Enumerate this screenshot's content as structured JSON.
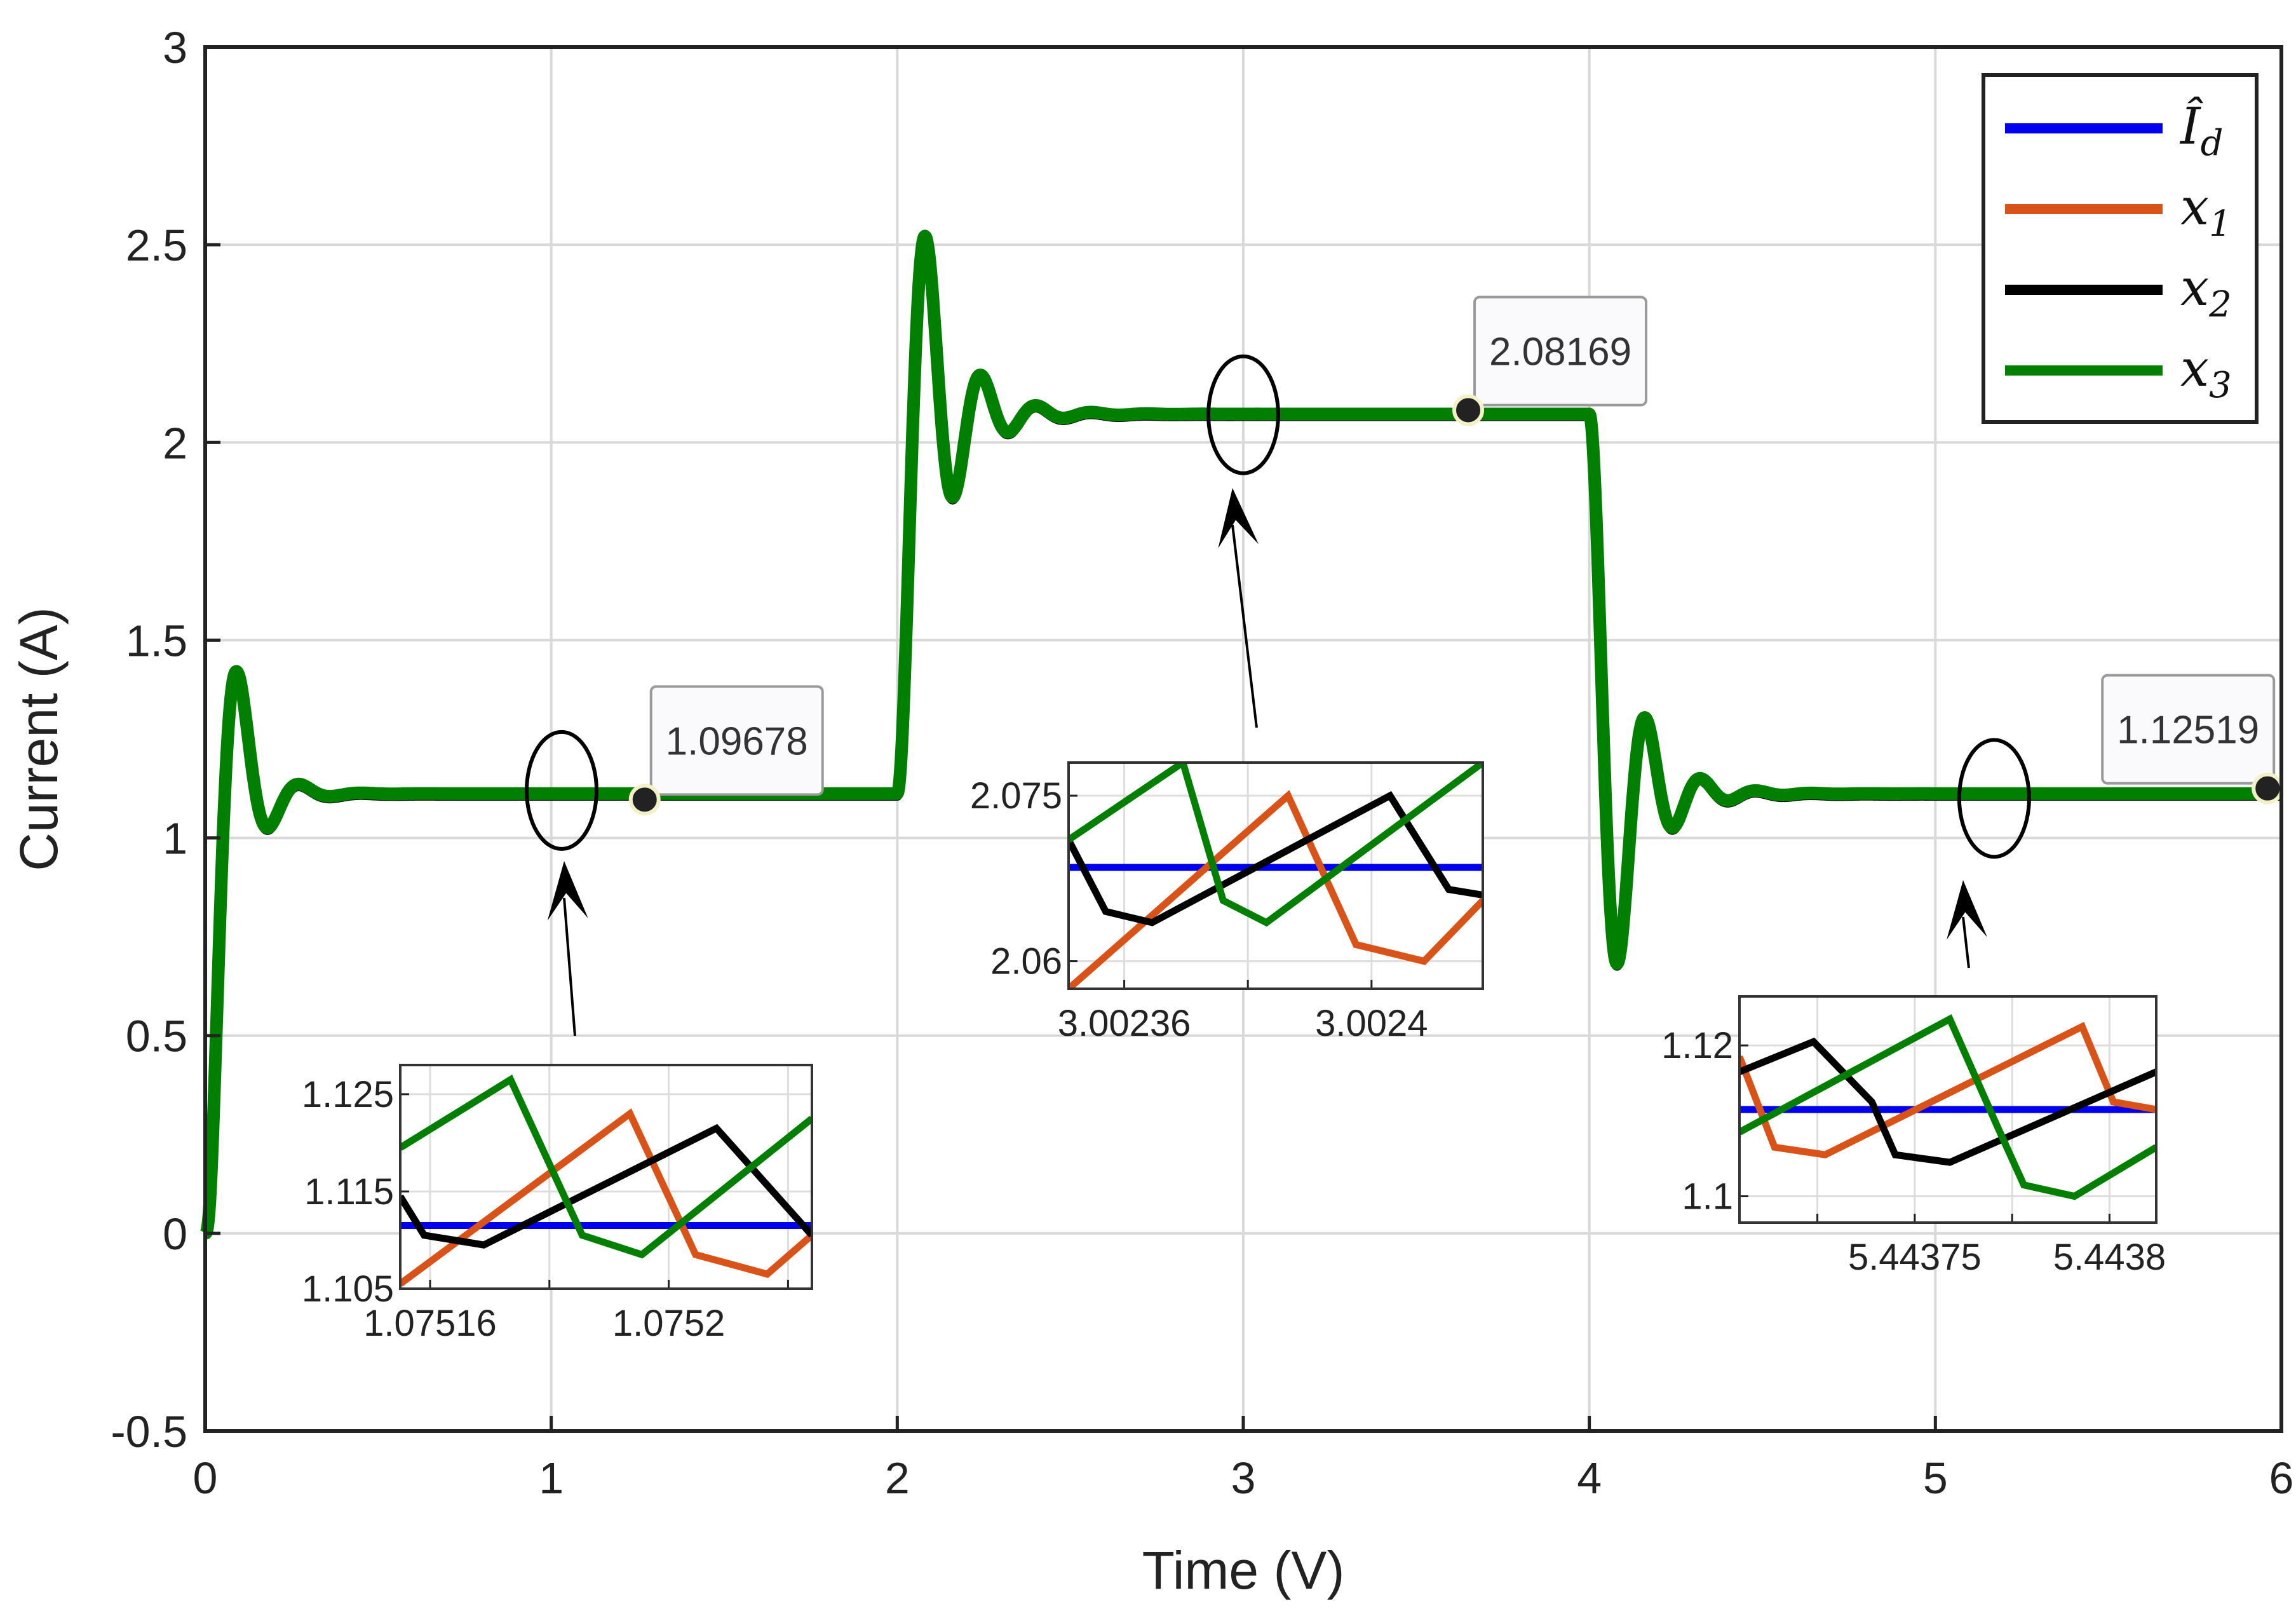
{
  "chart_data": {
    "type": "line",
    "title": "",
    "xlabel": "Time (V)",
    "ylabel": "Current (A)",
    "xlim": [
      0,
      6
    ],
    "ylim": [
      -0.5,
      3
    ],
    "xticks": [
      0,
      1,
      2,
      3,
      4,
      5,
      6
    ],
    "xtick_labels": [
      "0",
      "1",
      "2",
      "3",
      "4",
      "5",
      "6"
    ],
    "yticks": [
      -0.5,
      0,
      0.5,
      1,
      1.5,
      2,
      2.5,
      3
    ],
    "ytick_labels": [
      "-0.5",
      "0",
      "0.5",
      "1",
      "1.5",
      "2",
      "2.5",
      "3"
    ],
    "grid": true,
    "legend_position": "top-right",
    "series": [
      {
        "name": "Î_d",
        "color": "#0000ee"
      },
      {
        "name": "x_1",
        "color": "#d95319"
      },
      {
        "name": "x_2",
        "color": "#000000"
      },
      {
        "name": "x_3",
        "color": "#007f00"
      }
    ],
    "response_profile": [
      {
        "t_start": 0,
        "t_end": 2,
        "initial": 0,
        "final": 1.11,
        "overshoot_peak": 1.42,
        "peak_time": 0.09
      },
      {
        "t_start": 2,
        "t_end": 4,
        "initial": 1.11,
        "final": 2.07,
        "overshoot_peak": 2.52,
        "peak_time": 2.08
      },
      {
        "t_start": 4,
        "t_end": 6,
        "initial": 2.07,
        "final": 1.11,
        "overshoot_peak": 0.68,
        "peak_time": 4.08
      }
    ],
    "datatips": [
      {
        "x": 1.27,
        "y": 1.09678,
        "label": "1.09678"
      },
      {
        "x": 3.65,
        "y": 2.08169,
        "label": "2.08169"
      },
      {
        "x": 5.96,
        "y": 1.12519,
        "label": "1.12519"
      }
    ],
    "highlights": [
      {
        "x": 1.03,
        "y": 1.12
      },
      {
        "x": 3.0,
        "y": 2.07
      },
      {
        "x": 5.17,
        "y": 1.1
      }
    ],
    "insets": [
      {
        "name": "inset-1",
        "xlim": [
          1.075155,
          1.075224
        ],
        "ylim": [
          1.105,
          1.128
        ],
        "xticks": [
          1.07516,
          1.0752
        ],
        "xtick_labels": [
          "1.07516",
          "1.0752"
        ],
        "yticks": [
          1.105,
          1.115,
          1.125
        ],
        "ytick_labels": [
          "1.105",
          "1.115",
          "1.125"
        ],
        "series": [
          {
            "name": "Î_d",
            "points": [
              [
                1.075155,
                1.1115
              ],
              [
                1.075224,
                1.1115
              ]
            ]
          },
          {
            "name": "x_1",
            "points": [
              [
                1.075155,
                1.1055
              ],
              [
                1.0751935,
                1.123
              ],
              [
                1.0752045,
                1.1085
              ],
              [
                1.0752165,
                1.1065
              ],
              [
                1.075224,
                1.1105
              ]
            ]
          },
          {
            "name": "x_2",
            "points": [
              [
                1.075155,
                1.1145
              ],
              [
                1.075159,
                1.1105
              ],
              [
                1.075169,
                1.1095
              ],
              [
                1.075208,
                1.1215
              ],
              [
                1.075224,
                1.1105
              ]
            ]
          },
          {
            "name": "x_3",
            "points": [
              [
                1.075155,
                1.1195
              ],
              [
                1.0751735,
                1.1265
              ],
              [
                1.0751855,
                1.1105
              ],
              [
                1.0751955,
                1.1085
              ],
              [
                1.075224,
                1.1225
              ]
            ]
          }
        ]
      },
      {
        "name": "inset-2",
        "xlim": [
          3.002351,
          3.002418
        ],
        "ylim": [
          2.0575,
          2.078
        ],
        "xticks": [
          3.00236,
          3.0024
        ],
        "xtick_labels": [
          "3.00236",
          "3.0024"
        ],
        "yticks": [
          2.06,
          2.075
        ],
        "ytick_labels": [
          "2.06",
          "2.075"
        ],
        "series": [
          {
            "name": "Î_d",
            "points": [
              [
                3.002351,
                2.0685
              ],
              [
                3.002418,
                2.0685
              ]
            ]
          },
          {
            "name": "x_1",
            "points": [
              [
                3.002351,
                2.0575
              ],
              [
                3.0023865,
                2.075
              ],
              [
                3.0023975,
                2.0615
              ],
              [
                3.0024085,
                2.06
              ],
              [
                3.002418,
                2.0655
              ]
            ]
          },
          {
            "name": "x_2",
            "points": [
              [
                3.002351,
                2.071
              ],
              [
                3.002357,
                2.0645
              ],
              [
                3.0023645,
                2.0635
              ],
              [
                3.002403,
                2.075
              ],
              [
                3.0024125,
                2.0665
              ],
              [
                3.002418,
                2.066
              ]
            ]
          },
          {
            "name": "x_3",
            "points": [
              [
                3.002351,
                2.071
              ],
              [
                3.0023695,
                2.078
              ],
              [
                3.002376,
                2.0655
              ],
              [
                3.002383,
                2.0635
              ],
              [
                3.002418,
                2.078
              ]
            ]
          }
        ]
      },
      {
        "name": "inset-3",
        "xlim": [
          5.443705,
          5.443812
        ],
        "ylim": [
          1.0965,
          1.1265
        ],
        "xticks": [
          5.44375,
          5.4438
        ],
        "xtick_labels": [
          "5.44375",
          "5.4438"
        ],
        "yticks": [
          1.1,
          1.12
        ],
        "ytick_labels": [
          "1.1",
          "1.12"
        ],
        "series": [
          {
            "name": "Î_d",
            "points": [
              [
                5.443705,
                1.1115
              ],
              [
                5.443812,
                1.1115
              ]
            ]
          },
          {
            "name": "x_1",
            "points": [
              [
                5.443705,
                1.1185
              ],
              [
                5.443714,
                1.1065
              ],
              [
                5.443727,
                1.1055
              ],
              [
                5.443793,
                1.1225
              ],
              [
                5.443801,
                1.1125
              ],
              [
                5.443812,
                1.1115
              ]
            ]
          },
          {
            "name": "x_2",
            "points": [
              [
                5.443705,
                1.1165
              ],
              [
                5.443724,
                1.1205
              ],
              [
                5.443739,
                1.1125
              ],
              [
                5.443745,
                1.1055
              ],
              [
                5.443759,
                1.1045
              ],
              [
                5.443812,
                1.1165
              ]
            ]
          },
          {
            "name": "x_3",
            "points": [
              [
                5.443705,
                1.1085
              ],
              [
                5.443759,
                1.1235
              ],
              [
                5.443771,
                1.1095
              ],
              [
                5.443778,
                1.1015
              ],
              [
                5.443791,
                1.1
              ],
              [
                5.443812,
                1.1065
              ]
            ]
          }
        ]
      }
    ]
  }
}
